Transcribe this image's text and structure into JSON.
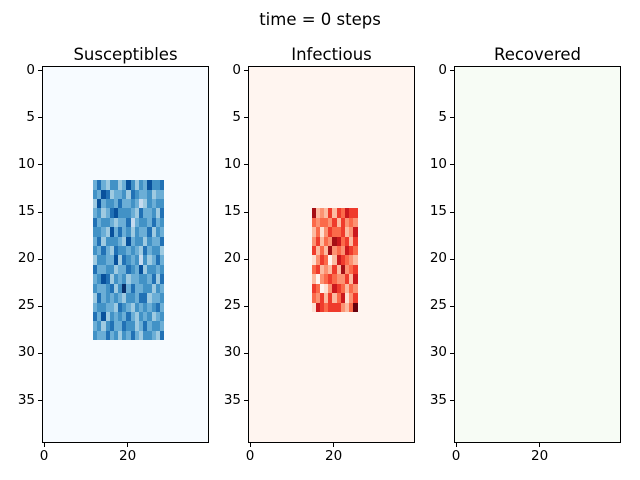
{
  "figure": {
    "suptitle": "time = 0 steps",
    "background": "#ffffff",
    "spine_color": "#000000"
  },
  "chart_data": [
    {
      "type": "heatmap",
      "title": "Susceptibles",
      "colormap": "Blues",
      "background_color": "#f7fbff",
      "grid_shape": [
        40,
        40
      ],
      "xlim": [
        -0.5,
        39.5
      ],
      "ylim": [
        39.5,
        -0.5
      ],
      "xticks": [
        0,
        20
      ],
      "yticks": [
        0,
        5,
        10,
        15,
        20,
        25,
        30,
        35
      ],
      "block": {
        "description": "populated susceptible region, rows 12-28, cols 12-28",
        "row_start": 12,
        "row_end": 28,
        "col_start": 12,
        "col_end": 28,
        "palette": [
          "#c6dbef",
          "#9ecae1",
          "#6baed6",
          "#4292c6",
          "#2171b5",
          "#08519c",
          "#08306b"
        ],
        "rows": [
          "24213312531325334",
          "32541223143223122",
          "15233242232013233",
          "23124533321422314",
          "42332122402332423",
          "33215242313224132",
          "24133321523313224",
          "32421433232142331",
          "13322514323031242",
          "42233122432513323",
          "23541323122332414",
          "32234136242233132",
          "14232321332441223",
          "23322143213232342",
          "42513232421323123",
          "23134224331242332",
          "32242313242133214"
        ]
      }
    },
    {
      "type": "heatmap",
      "title": "Infectious",
      "colormap": "Reds",
      "background_color": "#fff5f0",
      "grid_shape": [
        40,
        40
      ],
      "xlim": [
        -0.5,
        39.5
      ],
      "ylim": [
        39.5,
        -0.5
      ],
      "xticks": [
        0,
        20
      ],
      "yticks": [
        0,
        5,
        10,
        15,
        20,
        25,
        30,
        35
      ],
      "block": {
        "description": "infected region, rows 15-25, cols 15-25",
        "row_start": 15,
        "row_end": 25,
        "col_start": 15,
        "col_end": 25,
        "palette": [
          "#fff5f0",
          "#fee0d2",
          "#fcbba1",
          "#fc9272",
          "#fb6a4a",
          "#ef3b2c",
          "#cb181d",
          "#a50f15",
          "#67000d"
        ],
        "rows": [
          "72325254655",
          "43443525343",
          "24135445236",
          "35243764525",
          "52427343654",
          "13540265432",
          "45232527345",
          "20345433526",
          "54013654243",
          "43525246135",
          "16545553248"
        ]
      }
    },
    {
      "type": "heatmap",
      "title": "Recovered",
      "colormap": "Greens",
      "background_color": "#f7fcf5",
      "grid_shape": [
        40,
        40
      ],
      "xlim": [
        -0.5,
        39.5
      ],
      "ylim": [
        39.5,
        -0.5
      ],
      "xticks": [
        0,
        20
      ],
      "yticks": [
        0,
        5,
        10,
        15,
        20,
        25,
        30,
        35
      ],
      "block": null
    }
  ]
}
